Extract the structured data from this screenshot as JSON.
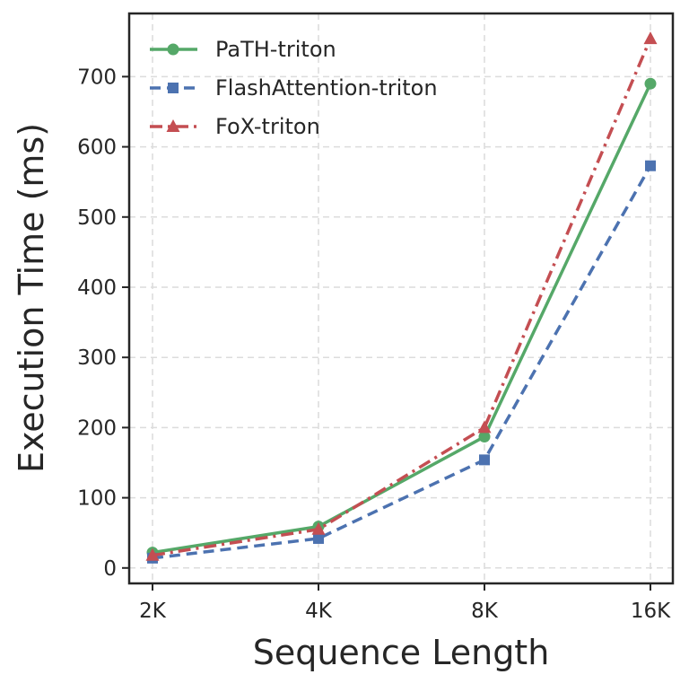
{
  "chart_data": {
    "type": "line",
    "title": "",
    "xlabel": "Sequence Length",
    "ylabel": "Execution Time (ms)",
    "categories": [
      "2K",
      "4K",
      "8K",
      "16K"
    ],
    "ylim": [
      -22,
      790
    ],
    "yticks": [
      0,
      100,
      200,
      300,
      400,
      500,
      600,
      700
    ],
    "grid": true,
    "legend_position": "top-left",
    "series": [
      {
        "name": "PaTH-triton",
        "values": [
          22,
          59,
          187,
          690
        ],
        "color": "#55a868",
        "dash": "solid",
        "marker": "circle"
      },
      {
        "name": "FlashAttention-triton",
        "values": [
          14,
          42,
          154,
          573
        ],
        "color": "#4c72b0",
        "dash": "dashed",
        "marker": "square"
      },
      {
        "name": "FoX-triton",
        "values": [
          18,
          55,
          200,
          754
        ],
        "color": "#c44e52",
        "dash": "dashdot",
        "marker": "triangle"
      }
    ]
  }
}
